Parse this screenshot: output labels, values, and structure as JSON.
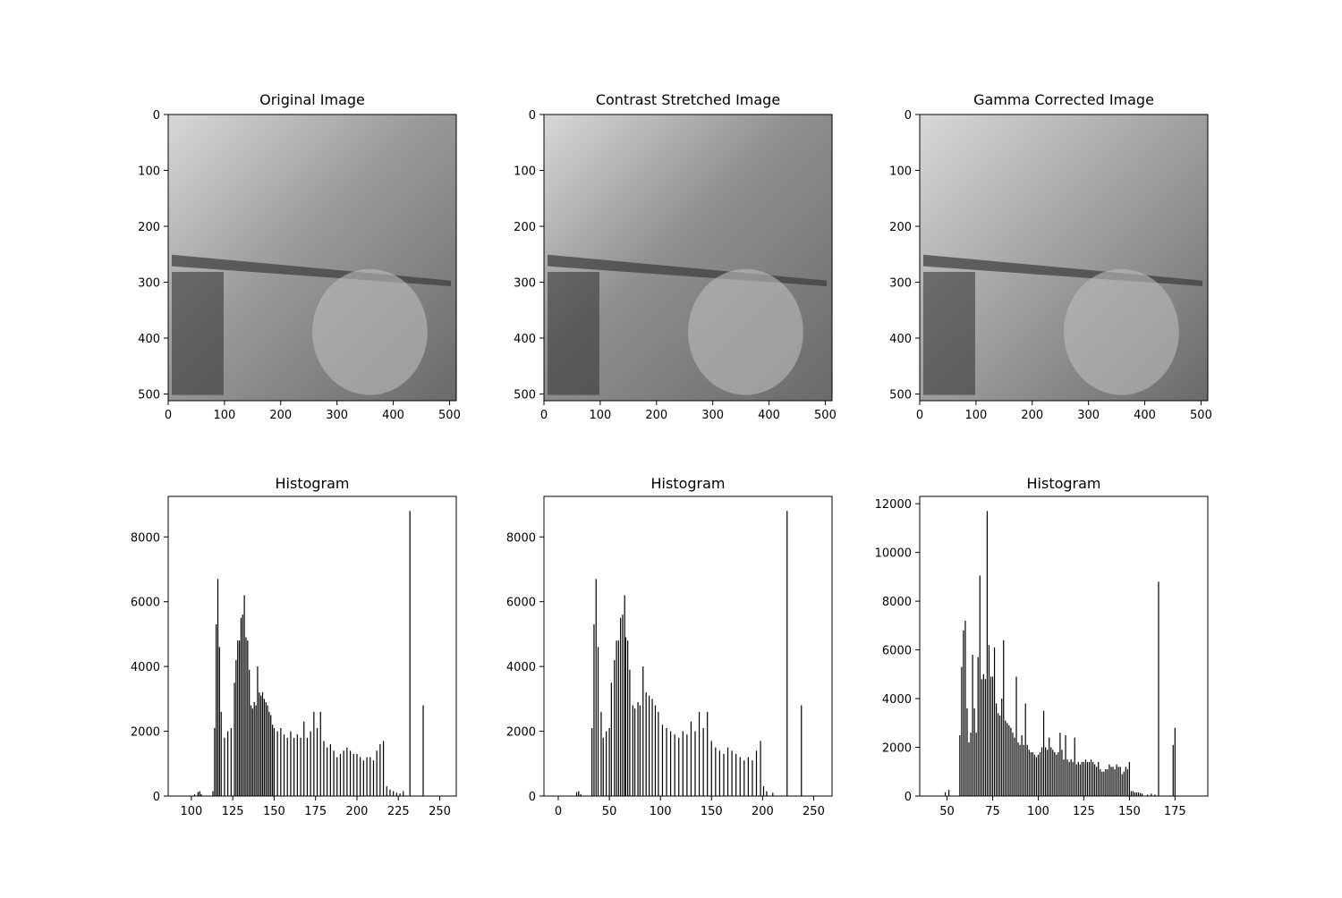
{
  "images": [
    {
      "title": "Original Image",
      "xticks": [
        0,
        100,
        200,
        300,
        400,
        500
      ],
      "yticks": [
        0,
        100,
        200,
        300,
        400,
        500
      ],
      "xlim": [
        0,
        512
      ],
      "ylim": [
        512,
        0
      ],
      "fill": "#9a9a9a"
    },
    {
      "title": "Contrast Stretched Image",
      "xticks": [
        0,
        100,
        200,
        300,
        400,
        500
      ],
      "yticks": [
        0,
        100,
        200,
        300,
        400,
        500
      ],
      "xlim": [
        0,
        512
      ],
      "ylim": [
        512,
        0
      ],
      "fill": "#8f8f8f"
    },
    {
      "title": "Gamma Corrected Image",
      "xticks": [
        0,
        100,
        200,
        300,
        400,
        500
      ],
      "yticks": [
        0,
        100,
        200,
        300,
        400,
        500
      ],
      "xlim": [
        0,
        512
      ],
      "ylim": [
        512,
        0
      ],
      "fill": "#a4a4a4"
    }
  ],
  "chart_data": [
    {
      "type": "bar",
      "title": "Histogram",
      "xlim": [
        86,
        260
      ],
      "ylim": [
        0,
        9250
      ],
      "xticks": [
        100,
        125,
        150,
        175,
        200,
        225,
        250
      ],
      "yticks": [
        0,
        2000,
        4000,
        6000,
        8000
      ],
      "x": [
        102,
        104,
        105,
        106,
        113,
        114,
        115,
        116,
        117,
        118,
        120,
        122,
        124,
        126,
        127,
        128,
        129,
        130,
        131,
        132,
        133,
        134,
        135,
        136,
        137,
        138,
        139,
        140,
        141,
        142,
        143,
        144,
        145,
        146,
        147,
        148,
        149,
        150,
        152,
        154,
        156,
        158,
        160,
        162,
        164,
        166,
        168,
        170,
        172,
        174,
        176,
        178,
        180,
        182,
        184,
        186,
        188,
        190,
        192,
        194,
        196,
        198,
        200,
        202,
        204,
        206,
        208,
        210,
        212,
        214,
        216,
        218,
        220,
        222,
        224,
        226,
        228,
        232,
        240
      ],
      "values": [
        50,
        120,
        150,
        60,
        150,
        2100,
        5300,
        6700,
        4600,
        2600,
        1800,
        2000,
        2100,
        3500,
        4200,
        4800,
        4800,
        5500,
        5600,
        6200,
        4900,
        4800,
        3900,
        2800,
        2700,
        2900,
        2800,
        4000,
        3200,
        3100,
        3200,
        3000,
        2900,
        2800,
        2600,
        2500,
        2200,
        2100,
        2000,
        2100,
        1900,
        1800,
        2000,
        1800,
        1900,
        1800,
        2300,
        1800,
        2000,
        2600,
        2100,
        2600,
        1700,
        1500,
        1600,
        1400,
        1200,
        1300,
        1400,
        1500,
        1400,
        1300,
        1300,
        1200,
        1100,
        1200,
        1200,
        1100,
        1400,
        1600,
        1700,
        300,
        200,
        150,
        100,
        80,
        150,
        8800,
        2800
      ]
    },
    {
      "type": "bar",
      "title": "Histogram",
      "xlim": [
        -14,
        268
      ],
      "ylim": [
        0,
        9250
      ],
      "xticks": [
        0,
        50,
        100,
        150,
        200,
        250
      ],
      "yticks": [
        0,
        2000,
        4000,
        6000,
        8000
      ],
      "x": [
        18,
        20,
        22,
        33,
        35,
        37,
        39,
        42,
        44,
        47,
        50,
        52,
        55,
        57,
        59,
        61,
        63,
        65,
        66,
        68,
        70,
        73,
        75,
        78,
        80,
        83,
        86,
        89,
        92,
        95,
        98,
        102,
        106,
        110,
        114,
        118,
        122,
        126,
        130,
        134,
        138,
        142,
        146,
        150,
        154,
        158,
        162,
        166,
        170,
        174,
        178,
        182,
        186,
        190,
        194,
        198,
        201,
        204,
        210,
        224,
        238
      ],
      "values": [
        120,
        150,
        60,
        2100,
        5300,
        6700,
        4600,
        2600,
        1800,
        2000,
        2100,
        3500,
        4200,
        4800,
        4800,
        5500,
        5600,
        6200,
        4900,
        4800,
        3900,
        2800,
        2700,
        2900,
        2800,
        4000,
        3200,
        3100,
        3000,
        2800,
        2600,
        2200,
        2100,
        2000,
        1900,
        1800,
        2000,
        1900,
        2300,
        2000,
        2600,
        2100,
        2600,
        1700,
        1500,
        1400,
        1300,
        1500,
        1400,
        1300,
        1200,
        1100,
        1200,
        1100,
        1400,
        1700,
        300,
        150,
        100,
        8800,
        2800
      ]
    },
    {
      "type": "bar",
      "title": "Histogram",
      "xlim": [
        35,
        193
      ],
      "ylim": [
        0,
        12300
      ],
      "xticks": [
        50,
        75,
        100,
        125,
        150,
        175
      ],
      "yticks": [
        0,
        2000,
        4000,
        6000,
        8000,
        10000,
        12000
      ],
      "x": [
        49,
        51,
        57,
        58,
        59,
        60,
        61,
        62,
        63,
        64,
        65,
        66,
        67,
        68,
        69,
        70,
        71,
        72,
        73,
        74,
        75,
        76,
        77,
        78,
        79,
        80,
        81,
        82,
        83,
        84,
        85,
        86,
        87,
        88,
        89,
        90,
        91,
        92,
        93,
        94,
        95,
        96,
        97,
        98,
        99,
        100,
        101,
        102,
        103,
        104,
        105,
        106,
        107,
        108,
        109,
        110,
        111,
        112,
        113,
        114,
        115,
        116,
        117,
        118,
        119,
        120,
        121,
        122,
        123,
        124,
        125,
        126,
        127,
        128,
        129,
        130,
        131,
        132,
        133,
        134,
        135,
        136,
        137,
        138,
        139,
        140,
        141,
        142,
        143,
        144,
        145,
        146,
        147,
        148,
        149,
        150,
        151,
        152,
        153,
        154,
        155,
        156,
        157,
        160,
        162,
        164,
        166,
        174,
        175
      ],
      "values": [
        150,
        250,
        2500,
        5300,
        6800,
        7200,
        3600,
        2200,
        2600,
        5800,
        3600,
        2600,
        5700,
        9050,
        4800,
        5000,
        4800,
        11700,
        6200,
        4900,
        4900,
        6100,
        3800,
        3400,
        3300,
        4000,
        6400,
        3100,
        3000,
        2900,
        2800,
        2600,
        2400,
        4900,
        2200,
        2100,
        2500,
        2100,
        3800,
        2100,
        1900,
        1800,
        1800,
        1700,
        1600,
        1700,
        1800,
        2000,
        3500,
        2000,
        1900,
        2400,
        2000,
        1900,
        1800,
        1700,
        1800,
        2600,
        1900,
        1500,
        2500,
        1500,
        1400,
        1500,
        1400,
        2400,
        1300,
        1400,
        1300,
        1400,
        1400,
        1500,
        1400,
        1400,
        1500,
        1400,
        1300,
        1200,
        1400,
        1100,
        1000,
        1000,
        1100,
        1100,
        1300,
        1200,
        1200,
        1100,
        1300,
        1200,
        1200,
        900,
        1000,
        1200,
        1100,
        1400,
        200,
        200,
        150,
        150,
        150,
        120,
        100,
        60,
        100,
        60,
        8800,
        2100,
        2800
      ]
    }
  ]
}
